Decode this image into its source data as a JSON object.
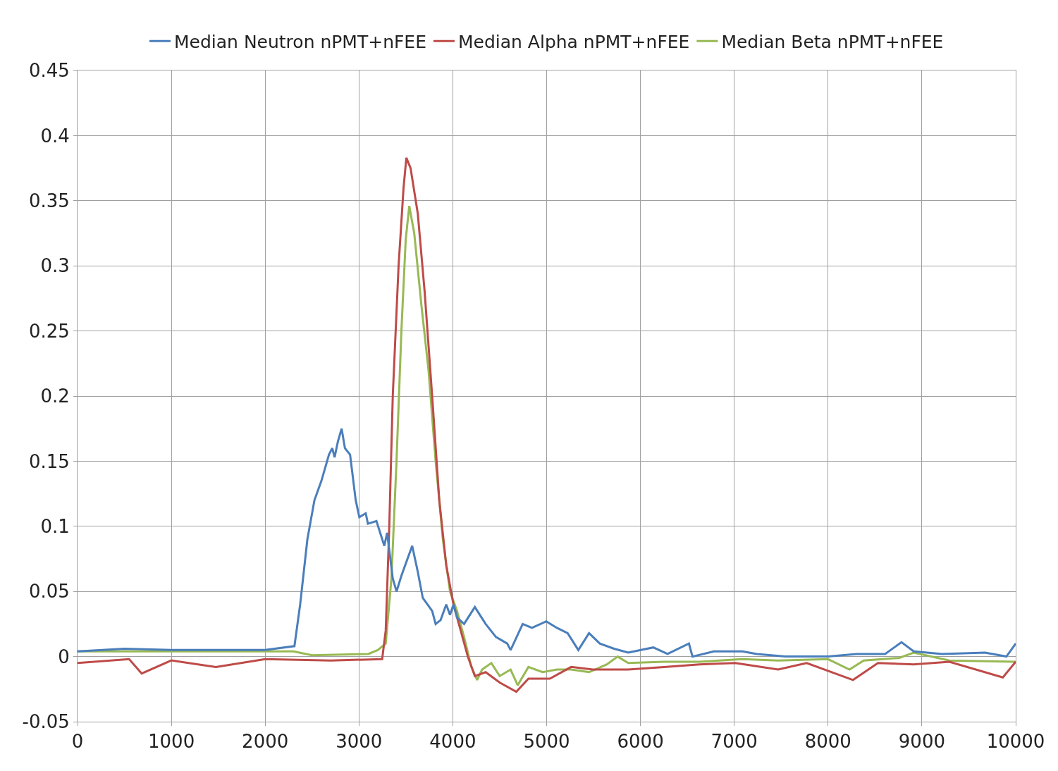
{
  "chart_data": {
    "type": "line",
    "xlim": [
      0,
      10000
    ],
    "ylim": [
      -0.05,
      0.45
    ],
    "xticks": [
      0,
      1000,
      2000,
      3000,
      4000,
      5000,
      6000,
      7000,
      8000,
      9000,
      10000
    ],
    "yticks": [
      -0.05,
      0,
      0.05,
      0.1,
      0.15,
      0.2,
      0.25,
      0.3,
      0.35,
      0.4,
      0.45
    ],
    "grid": true,
    "legend": "top",
    "marker": "none",
    "line_style": "solid",
    "series": [
      {
        "name": "Median Neutron nPMT+nFEE",
        "color": "#4a7ebb",
        "x": [
          0,
          500,
          1000,
          1500,
          2000,
          2312,
          2373,
          2450,
          2525,
          2600,
          2680,
          2715,
          2740,
          2775,
          2815,
          2850,
          2905,
          2965,
          3004,
          3072,
          3095,
          3186,
          3270,
          3300,
          3360,
          3400,
          3452,
          3567,
          3627,
          3680,
          3780,
          3817,
          3870,
          3930,
          3970,
          4007,
          4045,
          4120,
          4235,
          4350,
          4460,
          4580,
          4616,
          4745,
          4844,
          4996,
          5110,
          5224,
          5338,
          5452,
          5567,
          5719,
          5870,
          6137,
          6289,
          6517,
          6555,
          6783,
          7087,
          7240,
          7544,
          8000,
          8304,
          8608,
          8783,
          8913,
          9217,
          9673,
          9901,
          10000
        ],
        "values": [
          0.004,
          0.006,
          0.005,
          0.005,
          0.005,
          0.008,
          0.04,
          0.09,
          0.12,
          0.135,
          0.155,
          0.16,
          0.153,
          0.165,
          0.175,
          0.16,
          0.155,
          0.12,
          0.107,
          0.11,
          0.102,
          0.104,
          0.085,
          0.095,
          0.06,
          0.05,
          0.062,
          0.085,
          0.065,
          0.045,
          0.035,
          0.025,
          0.028,
          0.04,
          0.032,
          0.04,
          0.03,
          0.025,
          0.038,
          0.025,
          0.015,
          0.01,
          0.005,
          0.025,
          0.022,
          0.027,
          0.022,
          0.018,
          0.005,
          0.018,
          0.01,
          0.006,
          0.003,
          0.007,
          0.002,
          0.01,
          0.0,
          0.004,
          0.004,
          0.002,
          0.0,
          0.0,
          0.002,
          0.002,
          0.011,
          0.004,
          0.002,
          0.003,
          0.0,
          0.01
        ]
      },
      {
        "name": "Median Alpha nPMT+nFEE",
        "color": "#be4b48",
        "x": [
          0,
          550,
          684,
          1000,
          1475,
          2000,
          2700,
          3247,
          3285,
          3323,
          3360,
          3422,
          3475,
          3505,
          3550,
          3627,
          3700,
          3780,
          3856,
          3930,
          4007,
          4084,
          4160,
          4235,
          4350,
          4500,
          4677,
          4806,
          5034,
          5262,
          5490,
          5870,
          6251,
          6631,
          7011,
          7468,
          7772,
          8266,
          8532,
          8913,
          9293,
          9863,
          10000
        ],
        "values": [
          -0.005,
          -0.002,
          -0.013,
          -0.003,
          -0.008,
          -0.002,
          -0.003,
          -0.002,
          0.02,
          0.1,
          0.2,
          0.3,
          0.36,
          0.383,
          0.375,
          0.34,
          0.28,
          0.2,
          0.12,
          0.07,
          0.04,
          0.02,
          0.0,
          -0.015,
          -0.012,
          -0.02,
          -0.027,
          -0.017,
          -0.017,
          -0.008,
          -0.01,
          -0.01,
          -0.008,
          -0.006,
          -0.005,
          -0.01,
          -0.005,
          -0.018,
          -0.005,
          -0.006,
          -0.004,
          -0.016,
          -0.004
        ]
      },
      {
        "name": "Median Beta nPMT+nFEE",
        "color": "#98b954",
        "x": [
          0,
          1000,
          2000,
          2300,
          2500,
          3100,
          3200,
          3285,
          3346,
          3400,
          3452,
          3498,
          3536,
          3589,
          3665,
          3741,
          3817,
          3894,
          3970,
          4045,
          4120,
          4198,
          4259,
          4312,
          4411,
          4500,
          4616,
          4692,
          4806,
          4958,
          5110,
          5262,
          5452,
          5643,
          5757,
          5870,
          6251,
          6631,
          7087,
          7468,
          8000,
          8228,
          8380,
          8760,
          8913,
          9293,
          10000
        ],
        "values": [
          0.004,
          0.004,
          0.004,
          0.004,
          0.001,
          0.002,
          0.005,
          0.01,
          0.06,
          0.15,
          0.25,
          0.32,
          0.346,
          0.325,
          0.27,
          0.22,
          0.15,
          0.09,
          0.05,
          0.035,
          0.015,
          -0.008,
          -0.018,
          -0.01,
          -0.005,
          -0.015,
          -0.01,
          -0.022,
          -0.008,
          -0.012,
          -0.01,
          -0.01,
          -0.012,
          -0.006,
          0.0,
          -0.005,
          -0.004,
          -0.004,
          -0.002,
          -0.003,
          -0.002,
          -0.01,
          -0.003,
          -0.001,
          0.003,
          -0.003,
          -0.004
        ]
      }
    ]
  }
}
